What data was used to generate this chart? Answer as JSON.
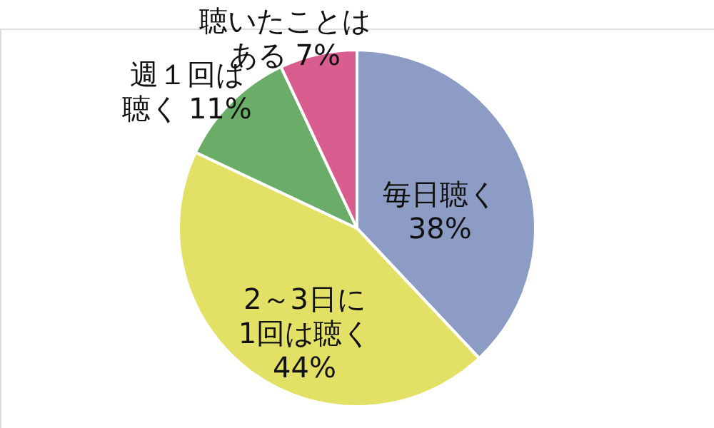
{
  "chart_data": {
    "type": "pie",
    "categories": [
      "毎日聴く",
      "2～3日に1回は聴く",
      "週１回は聴く",
      "聴いたことはある"
    ],
    "values": [
      38,
      44,
      11,
      7
    ],
    "value_labels": [
      "38%",
      "44%",
      "11%",
      "7%"
    ],
    "colors": [
      "#8c9cc4",
      "#e3e066",
      "#6aad68",
      "#d95d8e"
    ]
  }
}
